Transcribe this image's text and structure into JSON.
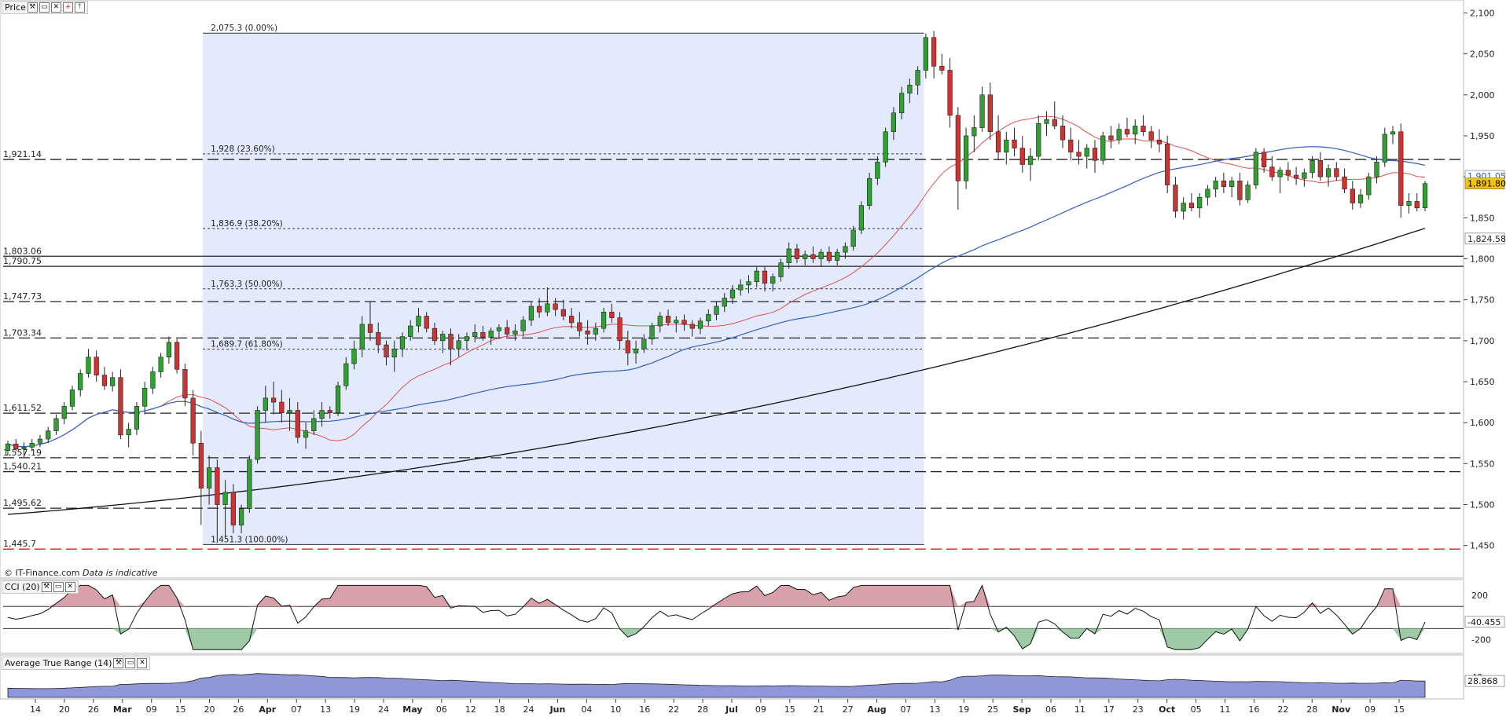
{
  "panes": {
    "price": {
      "title": "Price"
    },
    "cci": {
      "title": "CCI (20)"
    },
    "atr": {
      "title": "Average True Range (14)"
    }
  },
  "copyright": "© IT-Finance.com",
  "disclaimer": "Data is indicative",
  "chart_data": [
    {
      "type": "candlestick",
      "pane": "price",
      "ylim": [
        1420,
        2110
      ],
      "y_ticks": [
        "2,100",
        "2,050",
        "2,000",
        "1,950",
        "1,900",
        "1,850",
        "1,800",
        "1,750",
        "1,700",
        "1,650",
        "1,600",
        "1,550",
        "1,500",
        "1,450"
      ],
      "x_ticks": [
        "14",
        "20",
        "26",
        "Mar",
        "09",
        "15",
        "20",
        "26",
        "Apr",
        "07",
        "13",
        "19",
        "24",
        "May",
        "06",
        "12",
        "18",
        "24",
        "Jun",
        "04",
        "10",
        "16",
        "22",
        "28",
        "Jul",
        "09",
        "15",
        "21",
        "27",
        "Aug",
        "07",
        "13",
        "19",
        "25",
        "Sep",
        "06",
        "11",
        "17",
        "23",
        "Oct",
        "05",
        "11",
        "16",
        "22",
        "28",
        "Nov",
        "09",
        "15"
      ],
      "current_price": {
        "label": "1,891.80",
        "value": 1891.8,
        "color": "#f5c400"
      },
      "ma_value": {
        "label": "1,901.05",
        "value": 1901.05,
        "color": "#3060c0"
      },
      "ma200_value": {
        "label": "1,824.58",
        "value": 1824.58
      },
      "horizontal_levels": [
        {
          "label": "1,921.14",
          "value": 1921.14
        },
        {
          "label": "1,803.06",
          "value": 1803.06
        },
        {
          "label": "1,790.75",
          "value": 1790.75
        },
        {
          "label": "1,747.73",
          "value": 1747.73
        },
        {
          "label": "1,703.34",
          "value": 1703.34
        },
        {
          "label": "1,611.52",
          "value": 1611.52
        },
        {
          "label": "1,557.19",
          "value": 1557.19
        },
        {
          "label": "1,540.21",
          "value": 1540.21
        },
        {
          "label": "1,495.62",
          "value": 1495.62
        },
        {
          "label": "1,445.7",
          "value": 1445.7,
          "color": "#cc2222"
        }
      ],
      "fibonacci": [
        {
          "label": "2,075.3 (0.00%)",
          "value": 2075.3
        },
        {
          "label": "1,928 (23.60%)",
          "value": 1928
        },
        {
          "label": "1,836.9 (38.20%)",
          "value": 1836.9
        },
        {
          "label": "1,763.3 (50.00%)",
          "value": 1763.3
        },
        {
          "label": "1,689.7 (61.80%)",
          "value": 1689.7
        },
        {
          "label": "1,451.3 (100.00%)",
          "value": 1451.3
        }
      ],
      "series_colors": {
        "up": "#2fa12f",
        "down": "#cc3333",
        "ma_fast": "#e05050",
        "ma_mid": "#3060c0",
        "ma_slow": "#111111",
        "fib_zone": "#dde6fb"
      },
      "ohlc": [
        [
          1566,
          1578,
          1560,
          1574
        ],
        [
          1574,
          1580,
          1565,
          1568
        ],
        [
          1568,
          1576,
          1558,
          1570
        ],
        [
          1570,
          1580,
          1565,
          1575
        ],
        [
          1575,
          1585,
          1570,
          1580
        ],
        [
          1580,
          1595,
          1575,
          1590
        ],
        [
          1590,
          1610,
          1585,
          1605
        ],
        [
          1605,
          1625,
          1598,
          1620
        ],
        [
          1620,
          1645,
          1615,
          1640
        ],
        [
          1640,
          1665,
          1632,
          1660
        ],
        [
          1660,
          1690,
          1655,
          1680
        ],
        [
          1680,
          1688,
          1650,
          1658
        ],
        [
          1658,
          1668,
          1640,
          1645
        ],
        [
          1645,
          1662,
          1638,
          1655
        ],
        [
          1655,
          1665,
          1580,
          1585
        ],
        [
          1585,
          1600,
          1570,
          1592
        ],
        [
          1592,
          1625,
          1585,
          1620
        ],
        [
          1620,
          1650,
          1610,
          1642
        ],
        [
          1642,
          1668,
          1635,
          1662
        ],
        [
          1662,
          1685,
          1655,
          1680
        ],
        [
          1680,
          1705,
          1672,
          1698
        ],
        [
          1698,
          1702,
          1660,
          1665
        ],
        [
          1665,
          1672,
          1620,
          1630
        ],
        [
          1630,
          1640,
          1560,
          1575
        ],
        [
          1575,
          1590,
          1475,
          1520
        ],
        [
          1520,
          1560,
          1500,
          1545
        ],
        [
          1545,
          1555,
          1455,
          1500
        ],
        [
          1500,
          1530,
          1460,
          1515
        ],
        [
          1515,
          1525,
          1465,
          1475
        ],
        [
          1475,
          1500,
          1465,
          1495
        ],
        [
          1495,
          1560,
          1490,
          1555
        ],
        [
          1555,
          1620,
          1550,
          1615
        ],
        [
          1615,
          1645,
          1600,
          1630
        ],
        [
          1630,
          1650,
          1610,
          1625
        ],
        [
          1625,
          1640,
          1600,
          1612
        ],
        [
          1612,
          1630,
          1590,
          1615
        ],
        [
          1615,
          1625,
          1575,
          1582
        ],
        [
          1582,
          1600,
          1568,
          1590
        ],
        [
          1590,
          1615,
          1585,
          1605
        ],
        [
          1605,
          1625,
          1595,
          1615
        ],
        [
          1615,
          1620,
          1605,
          1612
        ],
        [
          1612,
          1650,
          1608,
          1645
        ],
        [
          1645,
          1680,
          1640,
          1672
        ],
        [
          1672,
          1700,
          1665,
          1690
        ],
        [
          1690,
          1730,
          1680,
          1720
        ],
        [
          1720,
          1748,
          1700,
          1710
        ],
        [
          1710,
          1722,
          1685,
          1695
        ],
        [
          1695,
          1700,
          1670,
          1680
        ],
        [
          1680,
          1700,
          1662,
          1690
        ],
        [
          1690,
          1710,
          1680,
          1705
        ],
        [
          1705,
          1725,
          1700,
          1718
        ],
        [
          1718,
          1740,
          1710,
          1730
        ],
        [
          1730,
          1735,
          1710,
          1715
        ],
        [
          1715,
          1722,
          1695,
          1700
        ],
        [
          1700,
          1712,
          1685,
          1708
        ],
        [
          1708,
          1715,
          1670,
          1690
        ],
        [
          1690,
          1708,
          1680,
          1700
        ],
        [
          1700,
          1710,
          1688,
          1705
        ],
        [
          1705,
          1720,
          1698,
          1710
        ],
        [
          1710,
          1718,
          1700,
          1704
        ],
        [
          1704,
          1716,
          1695,
          1712
        ],
        [
          1712,
          1720,
          1702,
          1716
        ],
        [
          1716,
          1725,
          1705,
          1708
        ],
        [
          1708,
          1720,
          1700,
          1712
        ],
        [
          1712,
          1730,
          1705,
          1725
        ],
        [
          1725,
          1748,
          1718,
          1742
        ],
        [
          1742,
          1752,
          1728,
          1735
        ],
        [
          1735,
          1765,
          1730,
          1745
        ],
        [
          1745,
          1752,
          1730,
          1738
        ],
        [
          1738,
          1750,
          1725,
          1730
        ],
        [
          1730,
          1740,
          1715,
          1722
        ],
        [
          1722,
          1735,
          1705,
          1712
        ],
        [
          1712,
          1725,
          1695,
          1708
        ],
        [
          1708,
          1722,
          1700,
          1715
        ],
        [
          1715,
          1740,
          1710,
          1735
        ],
        [
          1735,
          1745,
          1722,
          1728
        ],
        [
          1728,
          1735,
          1690,
          1700
        ],
        [
          1700,
          1712,
          1670,
          1685
        ],
        [
          1685,
          1700,
          1672,
          1690
        ],
        [
          1690,
          1708,
          1685,
          1702
        ],
        [
          1702,
          1722,
          1695,
          1718
        ],
        [
          1718,
          1735,
          1710,
          1730
        ],
        [
          1730,
          1738,
          1718,
          1722
        ],
        [
          1722,
          1730,
          1710,
          1725
        ],
        [
          1725,
          1732,
          1712,
          1720
        ],
        [
          1720,
          1725,
          1705,
          1715
        ],
        [
          1715,
          1728,
          1708,
          1724
        ],
        [
          1724,
          1738,
          1718,
          1732
        ],
        [
          1732,
          1748,
          1725,
          1742
        ],
        [
          1742,
          1758,
          1735,
          1752
        ],
        [
          1752,
          1768,
          1745,
          1762
        ],
        [
          1762,
          1775,
          1755,
          1768
        ],
        [
          1768,
          1780,
          1758,
          1772
        ],
        [
          1772,
          1790,
          1765,
          1785
        ],
        [
          1785,
          1790,
          1760,
          1770
        ],
        [
          1770,
          1782,
          1760,
          1778
        ],
        [
          1778,
          1800,
          1772,
          1795
        ],
        [
          1795,
          1820,
          1788,
          1812
        ],
        [
          1812,
          1818,
          1795,
          1800
        ],
        [
          1800,
          1810,
          1792,
          1805
        ],
        [
          1805,
          1815,
          1795,
          1800
        ],
        [
          1800,
          1812,
          1790,
          1808
        ],
        [
          1808,
          1815,
          1795,
          1798
        ],
        [
          1798,
          1812,
          1792,
          1808
        ],
        [
          1808,
          1820,
          1800,
          1815
        ],
        [
          1815,
          1840,
          1810,
          1835
        ],
        [
          1835,
          1870,
          1830,
          1865
        ],
        [
          1865,
          1905,
          1860,
          1898
        ],
        [
          1898,
          1925,
          1890,
          1918
        ],
        [
          1918,
          1960,
          1912,
          1955
        ],
        [
          1955,
          1985,
          1945,
          1978
        ],
        [
          1978,
          2010,
          1970,
          2002
        ],
        [
          2002,
          2020,
          1990,
          2012
        ],
        [
          2012,
          2035,
          2000,
          2030
        ],
        [
          2030,
          2075,
          2020,
          2070
        ],
        [
          2070,
          2078,
          2020,
          2035
        ],
        [
          2035,
          2050,
          2025,
          2030
        ],
        [
          2030,
          2045,
          1960,
          1975
        ],
        [
          1975,
          1985,
          1860,
          1895
        ],
        [
          1895,
          1960,
          1885,
          1950
        ],
        [
          1950,
          1975,
          1930,
          1960
        ],
        [
          1960,
          2010,
          1955,
          2000
        ],
        [
          2000,
          2015,
          1945,
          1955
        ],
        [
          1955,
          1975,
          1920,
          1930
        ],
        [
          1930,
          1955,
          1915,
          1945
        ],
        [
          1945,
          1960,
          1925,
          1935
        ],
        [
          1935,
          1950,
          1905,
          1915
        ],
        [
          1915,
          1935,
          1895,
          1925
        ],
        [
          1925,
          1975,
          1920,
          1965
        ],
        [
          1965,
          1980,
          1950,
          1970
        ],
        [
          1970,
          1992,
          1958,
          1962
        ],
        [
          1962,
          1975,
          1935,
          1945
        ],
        [
          1945,
          1960,
          1920,
          1930
        ],
        [
          1930,
          1945,
          1915,
          1925
        ],
        [
          1925,
          1940,
          1910,
          1935
        ],
        [
          1935,
          1945,
          1905,
          1920
        ],
        [
          1920,
          1955,
          1915,
          1950
        ],
        [
          1950,
          1962,
          1935,
          1945
        ],
        [
          1945,
          1965,
          1940,
          1958
        ],
        [
          1958,
          1972,
          1948,
          1952
        ],
        [
          1952,
          1970,
          1940,
          1962
        ],
        [
          1962,
          1975,
          1950,
          1955
        ],
        [
          1955,
          1962,
          1935,
          1945
        ],
        [
          1945,
          1958,
          1930,
          1940
        ],
        [
          1940,
          1950,
          1880,
          1890
        ],
        [
          1890,
          1900,
          1850,
          1858
        ],
        [
          1858,
          1875,
          1848,
          1868
        ],
        [
          1868,
          1880,
          1858,
          1862
        ],
        [
          1862,
          1880,
          1850,
          1875
        ],
        [
          1875,
          1890,
          1865,
          1885
        ],
        [
          1885,
          1900,
          1875,
          1895
        ],
        [
          1895,
          1905,
          1880,
          1888
        ],
        [
          1888,
          1900,
          1875,
          1895
        ],
        [
          1895,
          1905,
          1865,
          1872
        ],
        [
          1872,
          1895,
          1868,
          1890
        ],
        [
          1890,
          1935,
          1885,
          1930
        ],
        [
          1930,
          1935,
          1905,
          1912
        ],
        [
          1912,
          1925,
          1895,
          1900
        ],
        [
          1900,
          1912,
          1880,
          1908
        ],
        [
          1908,
          1918,
          1895,
          1902
        ],
        [
          1902,
          1912,
          1890,
          1898
        ],
        [
          1898,
          1910,
          1888,
          1905
        ],
        [
          1905,
          1925,
          1898,
          1920
        ],
        [
          1920,
          1930,
          1895,
          1900
        ],
        [
          1900,
          1915,
          1888,
          1910
        ],
        [
          1910,
          1918,
          1895,
          1900
        ],
        [
          1900,
          1910,
          1880,
          1885
        ],
        [
          1885,
          1895,
          1860,
          1868
        ],
        [
          1868,
          1885,
          1862,
          1878
        ],
        [
          1878,
          1905,
          1872,
          1900
        ],
        [
          1900,
          1925,
          1892,
          1918
        ],
        [
          1918,
          1960,
          1912,
          1952
        ],
        [
          1952,
          1962,
          1940,
          1955
        ],
        [
          1955,
          1965,
          1850,
          1865
        ],
        [
          1865,
          1880,
          1855,
          1870
        ],
        [
          1870,
          1880,
          1858,
          1862
        ],
        [
          1862,
          1895,
          1858,
          1891.8
        ]
      ],
      "cci": {
        "ylim": [
          -310,
          300
        ],
        "ticks": [
          "200",
          "-200"
        ],
        "last_label": "-40.455",
        "levels": [
          100,
          -100
        ]
      },
      "atr": {
        "ylim": [
          0,
          55
        ],
        "ticks": [
          "40"
        ],
        "last_label": "28.868"
      }
    }
  ]
}
